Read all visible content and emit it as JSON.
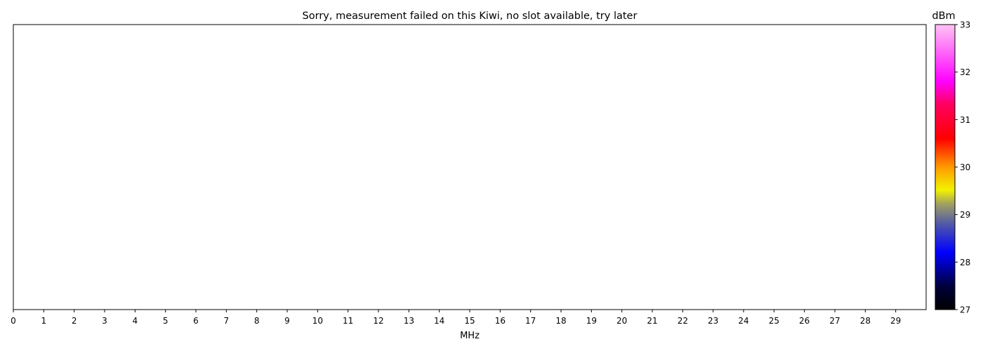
{
  "chart_data": {
    "type": "heatmap",
    "title": "Sorry, measurement failed on this Kiwi, no slot available, try later",
    "xlabel": "MHz",
    "ylabel": "",
    "xlim": [
      0,
      30
    ],
    "x_ticks": [
      0,
      1,
      2,
      3,
      4,
      5,
      6,
      7,
      8,
      9,
      10,
      11,
      12,
      13,
      14,
      15,
      16,
      17,
      18,
      19,
      20,
      21,
      22,
      23,
      24,
      25,
      26,
      27,
      28,
      29
    ],
    "values": [],
    "grid": false,
    "colorbar": {
      "label": "dBm",
      "range": [
        27,
        33
      ],
      "ticks": [
        27,
        28,
        29,
        30,
        31,
        32,
        33
      ],
      "colors": [
        {
          "pos": 0.0,
          "color": "#000000"
        },
        {
          "pos": 0.08,
          "color": "#00003a"
        },
        {
          "pos": 0.2,
          "color": "#0000ff"
        },
        {
          "pos": 0.3,
          "color": "#5058a8"
        },
        {
          "pos": 0.37,
          "color": "#a0a060"
        },
        {
          "pos": 0.42,
          "color": "#f2f200"
        },
        {
          "pos": 0.5,
          "color": "#ff9a00"
        },
        {
          "pos": 0.6,
          "color": "#ff0000"
        },
        {
          "pos": 0.72,
          "color": "#ff0060"
        },
        {
          "pos": 0.8,
          "color": "#ff00ff"
        },
        {
          "pos": 1.0,
          "color": "#ffc4f4"
        }
      ]
    }
  }
}
